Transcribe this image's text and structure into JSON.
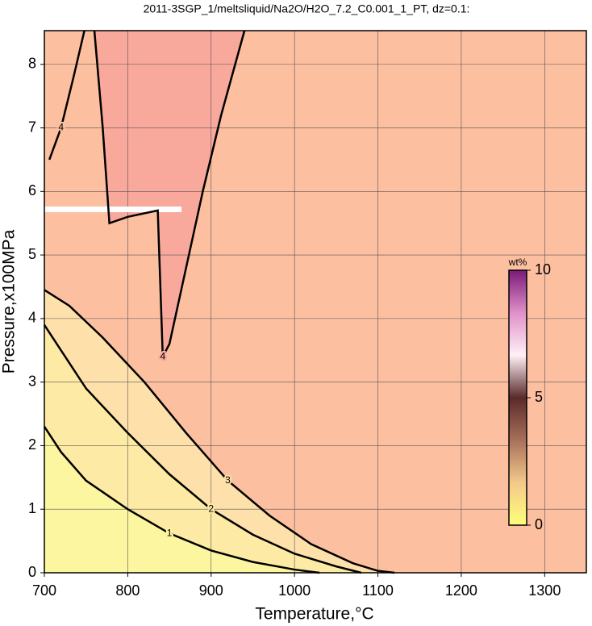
{
  "chart_data": {
    "type": "contour",
    "title": "2011-3SGP_1/meltsliquid/Na2O/H2O_7.2_C0.001_1_PT, dz=0.1:",
    "x_label": "Temperature,°C",
    "y_label": "Pressure,x100MPa",
    "xlim": [
      700,
      1350
    ],
    "ylim": [
      0,
      8.53
    ],
    "xticks": [
      700,
      800,
      900,
      1000,
      1100,
      1200,
      1300
    ],
    "yticks": [
      0,
      1,
      2,
      3,
      4,
      5,
      6,
      7,
      8
    ],
    "grid": true,
    "background": "#fcbfa0",
    "colorbar": {
      "label": "wt%",
      "lim": [
        0,
        10
      ],
      "ticks": [
        0,
        5,
        10
      ],
      "colors": [
        "#ffff7a",
        "#f3c98a",
        "#a8705a",
        "#5a2a2a",
        "#fff0f6",
        "#e090c8",
        "#7a1a7a"
      ]
    },
    "contours": [
      {
        "level": 3,
        "fill": "#fde0aa",
        "x": [
          700,
          730,
          770,
          820,
          870,
          920,
          970,
          1020,
          1070,
          1100,
          1120
        ],
        "y": [
          4.45,
          4.2,
          3.7,
          3.0,
          2.2,
          1.45,
          0.9,
          0.45,
          0.15,
          0.03,
          0
        ]
      },
      {
        "level": 2,
        "fill": "#fdeaa4",
        "x": [
          700,
          720,
          750,
          800,
          850,
          900,
          950,
          1000,
          1050,
          1080
        ],
        "y": [
          3.9,
          3.5,
          2.9,
          2.2,
          1.55,
          1.0,
          0.6,
          0.3,
          0.1,
          0
        ]
      },
      {
        "level": 1,
        "fill": "#fdf6a0",
        "x": [
          700,
          720,
          750,
          800,
          850,
          900,
          950,
          1000,
          1030
        ],
        "y": [
          2.3,
          1.9,
          1.45,
          1.0,
          0.62,
          0.35,
          0.17,
          0.05,
          0
        ]
      },
      {
        "level": 4,
        "fill": "#f8a99c",
        "closed": true,
        "x": [
          760,
          770,
          778,
          800,
          836,
          842,
          850,
          870,
          890,
          912,
          940
        ],
        "y": [
          8.53,
          7.0,
          5.5,
          5.6,
          5.7,
          3.4,
          3.6,
          4.8,
          6.0,
          7.2,
          8.53
        ]
      },
      {
        "level": 4,
        "x": [
          748,
          735,
          720,
          706
        ],
        "y": [
          8.53,
          7.8,
          7.0,
          6.5
        ]
      }
    ]
  }
}
